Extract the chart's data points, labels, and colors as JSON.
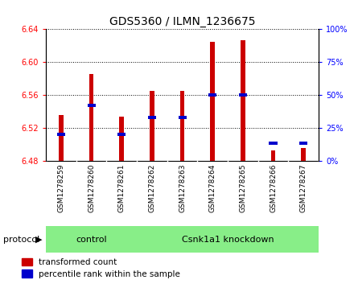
{
  "title": "GDS5360 / ILMN_1236675",
  "samples": [
    "GSM1278259",
    "GSM1278260",
    "GSM1278261",
    "GSM1278262",
    "GSM1278263",
    "GSM1278264",
    "GSM1278265",
    "GSM1278266",
    "GSM1278267"
  ],
  "transformed_counts": [
    6.535,
    6.585,
    6.534,
    6.565,
    6.565,
    6.625,
    6.627,
    6.492,
    6.495
  ],
  "percentile_ranks": [
    20,
    42,
    20,
    33,
    33,
    50,
    50,
    13,
    13
  ],
  "ylim_left": [
    6.48,
    6.64
  ],
  "ylim_right": [
    0,
    100
  ],
  "yticks_left": [
    6.48,
    6.52,
    6.56,
    6.6,
    6.64
  ],
  "yticks_right": [
    0,
    25,
    50,
    75,
    100
  ],
  "bar_color": "#cc0000",
  "blue_color": "#0000cc",
  "control_indices": [
    0,
    1,
    2
  ],
  "knockdown_indices": [
    3,
    4,
    5,
    6,
    7,
    8
  ],
  "control_label": "control",
  "knockdown_label": "Csnk1a1 knockdown",
  "protocol_label": "protocol",
  "legend1": "transformed count",
  "legend2": "percentile rank within the sample",
  "tick_bg_color": "#cccccc",
  "group_bg_color": "#88ee88",
  "bar_bottom": 6.48,
  "bar_width": 0.15
}
